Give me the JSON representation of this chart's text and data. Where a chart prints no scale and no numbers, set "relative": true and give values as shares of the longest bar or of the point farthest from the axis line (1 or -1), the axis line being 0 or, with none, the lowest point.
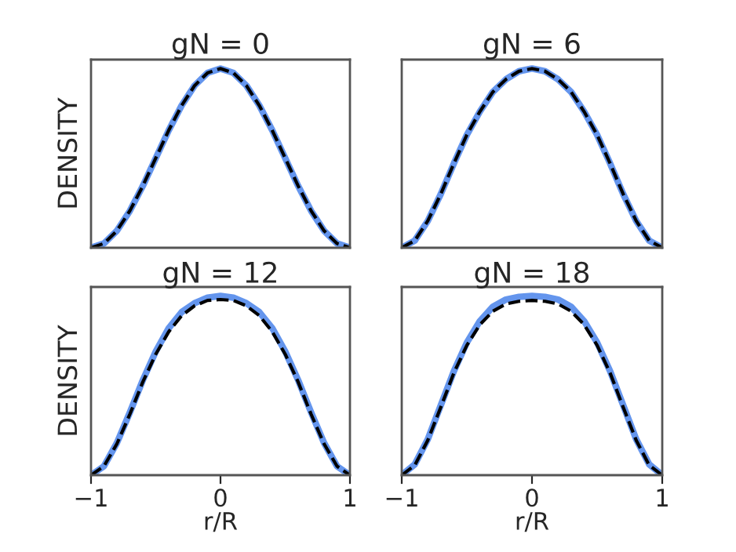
{
  "chart_data": [
    {
      "type": "line",
      "title": "gN = 0",
      "ylabel": "DENSITY",
      "relative": true,
      "tick_labels": false,
      "xlim": [
        -1,
        1
      ],
      "x": [
        -1,
        -0.9,
        -0.8,
        -0.7,
        -0.6,
        -0.5,
        -0.4,
        -0.3,
        -0.2,
        -0.1,
        0,
        0.1,
        0.2,
        0.3,
        0.4,
        0.5,
        0.6,
        0.7,
        0.8,
        0.9,
        1
      ],
      "series": [
        {
          "color": "#6495ed",
          "line_style": "solid",
          "values": [
            0,
            0.024,
            0.095,
            0.206,
            0.345,
            0.5,
            0.655,
            0.794,
            0.905,
            0.976,
            1,
            0.976,
            0.905,
            0.794,
            0.655,
            0.5,
            0.345,
            0.206,
            0.095,
            0.024,
            0
          ]
        },
        {
          "color": "#000000",
          "line_style": "dashed",
          "values": [
            0,
            0.024,
            0.095,
            0.206,
            0.345,
            0.5,
            0.655,
            0.794,
            0.905,
            0.976,
            1,
            0.976,
            0.905,
            0.794,
            0.655,
            0.5,
            0.345,
            0.206,
            0.095,
            0.024,
            0
          ]
        }
      ]
    },
    {
      "type": "line",
      "title": "gN = 6",
      "relative": true,
      "tick_labels": false,
      "xlim": [
        -1,
        1
      ],
      "x": [
        -1,
        -0.9,
        -0.8,
        -0.7,
        -0.6,
        -0.5,
        -0.4,
        -0.3,
        -0.2,
        -0.1,
        0,
        0.1,
        0.2,
        0.3,
        0.4,
        0.5,
        0.6,
        0.7,
        0.8,
        0.9,
        1
      ],
      "series": [
        {
          "color": "#6495ed",
          "line_style": "solid",
          "values": [
            0,
            0.04,
            0.15,
            0.3,
            0.47,
            0.63,
            0.76,
            0.87,
            0.94,
            0.985,
            1,
            0.985,
            0.94,
            0.87,
            0.76,
            0.63,
            0.47,
            0.3,
            0.15,
            0.04,
            0
          ]
        },
        {
          "color": "#000000",
          "line_style": "dashed",
          "values": [
            0,
            0.04,
            0.15,
            0.3,
            0.47,
            0.63,
            0.76,
            0.87,
            0.94,
            0.985,
            1,
            0.985,
            0.94,
            0.87,
            0.76,
            0.63,
            0.47,
            0.3,
            0.15,
            0.04,
            0
          ]
        }
      ]
    },
    {
      "type": "line",
      "title": "gN = 12",
      "ylabel": "DENSITY",
      "xlabel": "r/R",
      "relative": true,
      "tick_labels": "x",
      "xlim": [
        -1,
        1
      ],
      "xticks": [
        {
          "value": -1,
          "label": "−1"
        },
        0,
        1
      ],
      "x": [
        -1,
        -0.9,
        -0.8,
        -0.7,
        -0.6,
        -0.5,
        -0.4,
        -0.3,
        -0.2,
        -0.1,
        0,
        0.1,
        0.2,
        0.3,
        0.4,
        0.5,
        0.6,
        0.7,
        0.8,
        0.9,
        1
      ],
      "series": [
        {
          "color": "#6495ed",
          "line_style": "solid",
          "values": [
            0,
            0.05,
            0.18,
            0.35,
            0.53,
            0.69,
            0.82,
            0.91,
            0.96,
            0.99,
            1,
            0.99,
            0.96,
            0.91,
            0.82,
            0.69,
            0.53,
            0.35,
            0.18,
            0.05,
            0
          ]
        },
        {
          "color": "#000000",
          "line_style": "dashed",
          "values": [
            0,
            0.05,
            0.175,
            0.34,
            0.52,
            0.675,
            0.8,
            0.89,
            0.945,
            0.975,
            0.98,
            0.975,
            0.945,
            0.89,
            0.8,
            0.675,
            0.52,
            0.34,
            0.175,
            0.05,
            0
          ]
        }
      ]
    },
    {
      "type": "line",
      "title": "gN = 18",
      "xlabel": "r/R",
      "relative": true,
      "tick_labels": "x",
      "xlim": [
        -1,
        1
      ],
      "xticks": [
        {
          "value": -1,
          "label": "−1"
        },
        0,
        1
      ],
      "x": [
        -1,
        -0.9,
        -0.8,
        -0.7,
        -0.6,
        -0.5,
        -0.4,
        -0.3,
        -0.2,
        -0.1,
        0,
        0.1,
        0.2,
        0.3,
        0.4,
        0.5,
        0.6,
        0.7,
        0.8,
        0.9,
        1
      ],
      "series": [
        {
          "color": "#6495ed",
          "line_style": "solid",
          "values": [
            0,
            0.06,
            0.2,
            0.39,
            0.58,
            0.74,
            0.86,
            0.94,
            0.98,
            0.995,
            1,
            0.995,
            0.98,
            0.94,
            0.86,
            0.74,
            0.58,
            0.39,
            0.2,
            0.06,
            0
          ]
        },
        {
          "color": "#000000",
          "line_style": "dashed",
          "values": [
            0,
            0.055,
            0.195,
            0.38,
            0.57,
            0.725,
            0.84,
            0.915,
            0.955,
            0.97,
            0.975,
            0.97,
            0.955,
            0.915,
            0.84,
            0.725,
            0.57,
            0.38,
            0.195,
            0.055,
            0
          ]
        }
      ]
    }
  ]
}
